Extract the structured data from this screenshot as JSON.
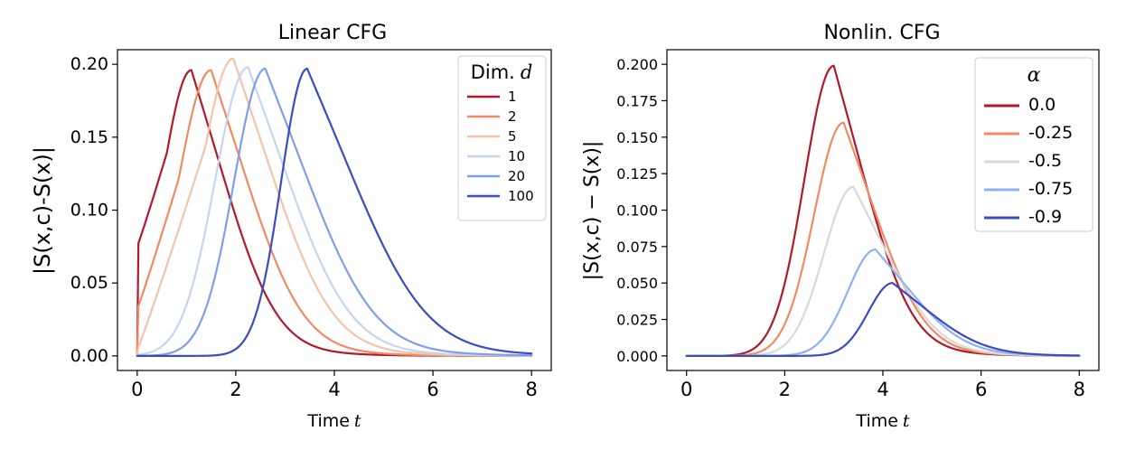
{
  "chart_data": [
    {
      "type": "line",
      "title": "Linear CFG",
      "xlabel": "Time",
      "xlabel_var": "t",
      "ylabel": "|S(x,c)-S(x)|",
      "xlim": [
        -0.4,
        8.4
      ],
      "ylim": [
        -0.01,
        0.21
      ],
      "x_ticks": [
        0,
        2,
        4,
        6,
        8
      ],
      "x_tick_labels": [
        "0",
        "2",
        "4",
        "6",
        "8"
      ],
      "y_ticks": [
        0.0,
        0.05,
        0.1,
        0.15,
        0.2
      ],
      "y_tick_labels": [
        "0.00",
        "0.05",
        "0.10",
        "0.15",
        "0.20"
      ],
      "legend": {
        "title": "Dim.",
        "title_var": "d",
        "position": "upper right"
      },
      "series": [
        {
          "name": "1",
          "color": "#b2182b",
          "peak_t": 1.1,
          "peak": 0.196,
          "rise": 0.85,
          "decay": 1.25,
          "start": 0.075
        },
        {
          "name": "2",
          "color": "#ef8a62",
          "peak_t": 1.5,
          "peak": 0.196,
          "rise": 0.95,
          "decay": 1.35,
          "start": 0.032
        },
        {
          "name": "5",
          "color": "#f4c3a8",
          "peak_t": 1.95,
          "peak": 0.204,
          "rise": 0.95,
          "decay": 1.45,
          "start": 0.004
        },
        {
          "name": "10",
          "color": "#c5d5f0",
          "peak_t": 2.25,
          "peak": 0.198,
          "rise": 0.95,
          "decay": 1.5,
          "start": 0.0
        },
        {
          "name": "20",
          "color": "#7f9eea",
          "peak_t": 2.6,
          "peak": 0.197,
          "rise": 0.9,
          "decay": 1.6,
          "start": 0.0
        },
        {
          "name": "100",
          "color": "#3b4cc0",
          "peak_t": 3.45,
          "peak": 0.197,
          "rise": 0.75,
          "decay": 1.75,
          "start": 0.0
        }
      ],
      "t_end": 8
    },
    {
      "type": "line",
      "title": "Nonlin. CFG",
      "xlabel": "Time",
      "xlabel_var": "t",
      "ylabel": "|S(x,c) − S(x)|",
      "xlim": [
        -0.4,
        8.4
      ],
      "ylim": [
        -0.01,
        0.21
      ],
      "x_ticks": [
        0,
        2,
        4,
        6,
        8
      ],
      "x_tick_labels": [
        "0",
        "2",
        "4",
        "6",
        "8"
      ],
      "y_ticks": [
        0.0,
        0.025,
        0.05,
        0.075,
        0.1,
        0.125,
        0.15,
        0.175,
        0.2
      ],
      "y_tick_labels": [
        "0.000",
        "0.025",
        "0.050",
        "0.075",
        "0.100",
        "0.125",
        "0.150",
        "0.175",
        "0.200"
      ],
      "legend": {
        "title": "α",
        "position": "upper right"
      },
      "series": [
        {
          "name": "0.0",
          "color": "#b2182b",
          "peak_t": 3.0,
          "peak": 0.199,
          "rise": 0.85,
          "decay": 1.15
        },
        {
          "name": "-0.25",
          "color": "#ef8a62",
          "peak_t": 3.2,
          "peak": 0.16,
          "rise": 0.85,
          "decay": 1.2
        },
        {
          "name": "-0.5",
          "color": "#d9d9d9",
          "peak_t": 3.4,
          "peak": 0.116,
          "rise": 0.85,
          "decay": 1.25
        },
        {
          "name": "-0.75",
          "color": "#8fb1f2",
          "peak_t": 3.85,
          "peak": 0.073,
          "rise": 0.8,
          "decay": 1.3
        },
        {
          "name": "-0.9",
          "color": "#3b4cc0",
          "peak_t": 4.2,
          "peak": 0.05,
          "rise": 0.7,
          "decay": 1.35
        }
      ],
      "t_end": 8
    }
  ]
}
